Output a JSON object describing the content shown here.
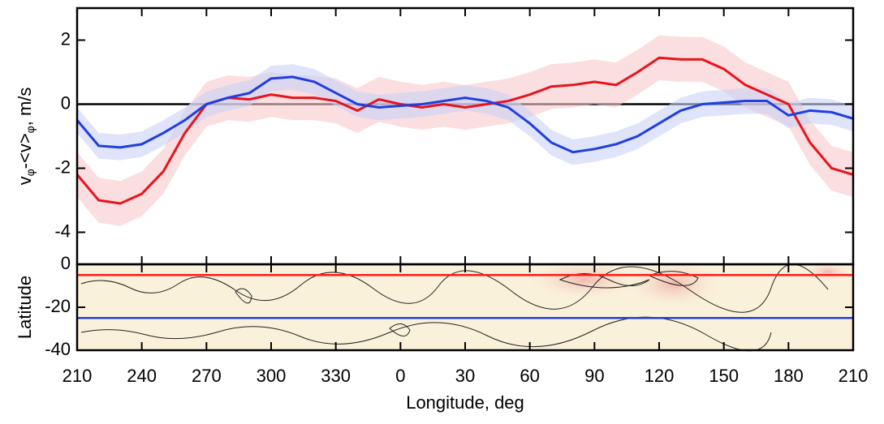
{
  "chart_data": [
    {
      "type": "line",
      "ylabel_parts": [
        {
          "text": "v"
        },
        {
          "text": "φ",
          "sub": true
        },
        {
          "text": "-<v>"
        },
        {
          "text": "φ",
          "sub": true
        },
        {
          "text": ", m/s"
        }
      ],
      "x": [
        210,
        220,
        230,
        240,
        250,
        260,
        270,
        280,
        290,
        300,
        310,
        320,
        330,
        340,
        350,
        360,
        370,
        380,
        390,
        400,
        410,
        420,
        430,
        440,
        450,
        460,
        470,
        480,
        490,
        500,
        510,
        520,
        530,
        540,
        550,
        560,
        570
      ],
      "xlim": [
        210,
        570
      ],
      "ylim": [
        -5,
        3
      ],
      "yticks": [
        -4,
        -2,
        0,
        2
      ],
      "hline": 0,
      "series": [
        {
          "color": "#e8141b",
          "band_color": "#f9c8cc",
          "band": 0.7,
          "values": [
            -2.2,
            -3.0,
            -3.1,
            -2.8,
            -2.1,
            -0.9,
            0.0,
            0.2,
            0.15,
            0.3,
            0.2,
            0.2,
            0.1,
            -0.2,
            0.15,
            0.0,
            -0.1,
            0.0,
            -0.1,
            0.0,
            0.1,
            0.3,
            0.55,
            0.6,
            0.7,
            0.6,
            1.0,
            1.45,
            1.4,
            1.4,
            1.1,
            0.6,
            0.3,
            0.0,
            -1.2,
            -2.0,
            -2.2
          ]
        },
        {
          "color": "#1f3fe0",
          "band_color": "#c9d2f7",
          "band": 0.4,
          "values": [
            -0.5,
            -1.3,
            -1.35,
            -1.25,
            -0.9,
            -0.5,
            0.0,
            0.2,
            0.35,
            0.8,
            0.85,
            0.7,
            0.35,
            0.0,
            -0.1,
            -0.05,
            0.0,
            0.1,
            0.2,
            0.1,
            -0.1,
            -0.6,
            -1.2,
            -1.5,
            -1.4,
            -1.25,
            -1.0,
            -0.6,
            -0.2,
            0.0,
            0.05,
            0.1,
            0.1,
            -0.35,
            -0.2,
            -0.25,
            -0.45
          ]
        }
      ]
    },
    {
      "type": "map",
      "ylabel": "Latitude",
      "xlabel": "Longitude, deg",
      "xlim": [
        210,
        570
      ],
      "xticks": [
        210,
        240,
        270,
        300,
        330,
        {
          "value": 360,
          "label": "0"
        },
        {
          "value": 390,
          "label": "30"
        },
        {
          "value": 420,
          "label": "60"
        },
        {
          "value": 450,
          "label": "90"
        },
        {
          "value": 480,
          "label": "120"
        },
        {
          "value": 510,
          "label": "150"
        },
        {
          "value": 540,
          "label": "180"
        },
        {
          "value": 570,
          "label": "210"
        }
      ],
      "ylim": [
        -40,
        0
      ],
      "yticks": [
        -40,
        -20,
        0
      ],
      "lines": [
        {
          "y": -5,
          "color": "#ff1a1a"
        },
        {
          "y": -25,
          "color": "#1f3fe0"
        }
      ]
    }
  ]
}
